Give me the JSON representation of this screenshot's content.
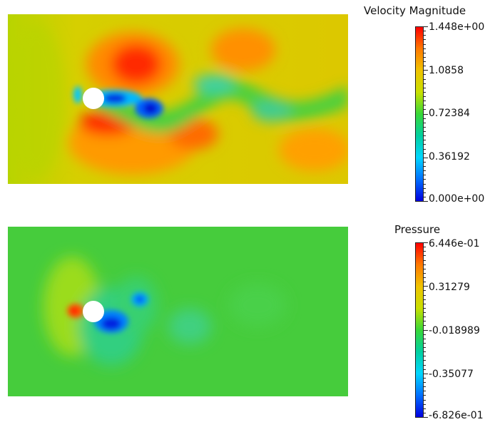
{
  "velocity": {
    "title": "Velocity Magnitude",
    "labels": [
      "1.448e+00",
      "1.0858",
      "0.72384",
      "0.36192",
      "0.000e+00"
    ]
  },
  "pressure": {
    "title": "Pressure",
    "labels": [
      "6.446e-01",
      "0.31279",
      "-0.018989",
      "-0.35077",
      "-6.826e-01"
    ]
  },
  "colors": {
    "colormap": [
      "#0000e0",
      "#0070ff",
      "#00d6ff",
      "#00d0a0",
      "#38d838",
      "#c9e000",
      "#f0c400",
      "#ff7a00",
      "#ff0000"
    ],
    "obstacle": "#ffffff"
  }
}
